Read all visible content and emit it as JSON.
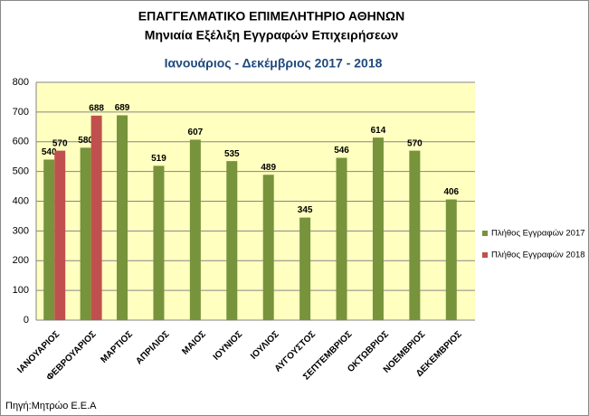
{
  "chart_data": {
    "type": "bar",
    "title": "ΕΠΑΓΓΕΛΜΑΤΙΚΟ ΕΠΙΜΕΛΗΤΗΡΙΟ ΑΘΗΝΩΝ",
    "subtitle": "Μηνιαία Εξέλιξη Εγγραφών  Επιχειρήσεων",
    "period": "Ιανουάριος - Δεκέμβριος 2017 - 2018",
    "source": "Πηγή:Μητρώο  Ε.Ε.Α",
    "categories": [
      "ΙΑΝΟΥΑΡΙΟΣ",
      "ΦΕΒΡΟΥΑΡΙΟΣ",
      "ΜΑΡΤΙΟΣ",
      "ΑΠΡΙΛΙΟΣ",
      "ΜΑΙΟΣ",
      "ΙΟΥΝΙΟΣ",
      "ΙΟΥΛΙΟΣ",
      "ΑΥΓΟΥΣΤΟΣ",
      "ΣΕΠΤΕΜΒΡΙΟΣ",
      "ΟΚΤΩΒΡΙΟΣ",
      "ΝΟΕΜΒΡΙΟΣ",
      "ΔΕΚΕΜΒΡΙΟΣ"
    ],
    "series": [
      {
        "name": "Πλήθος Εγγραφών 2017",
        "color": "#77933c",
        "values": [
          540,
          580,
          689,
          519,
          607,
          535,
          489,
          345,
          546,
          614,
          570,
          406
        ]
      },
      {
        "name": "Πλήθος Εγγραφών 2018",
        "color": "#c0504d",
        "values": [
          570,
          688,
          null,
          null,
          null,
          null,
          null,
          null,
          null,
          null,
          null,
          null
        ]
      }
    ],
    "ylim": [
      0,
      800
    ],
    "yticks": [
      0,
      100,
      200,
      300,
      400,
      500,
      600,
      700,
      800
    ],
    "grid": true,
    "legend": "right",
    "plot_background": "#ffffc0"
  }
}
